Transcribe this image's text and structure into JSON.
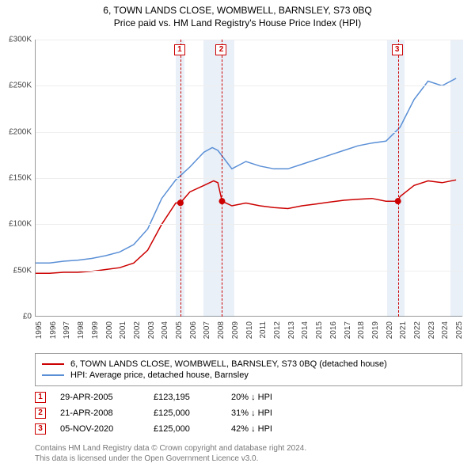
{
  "title": "6, TOWN LANDS CLOSE, WOMBWELL, BARNSLEY, S73 0BQ",
  "subtitle": "Price paid vs. HM Land Registry's House Price Index (HPI)",
  "chart": {
    "type": "line",
    "background_color": "#ffffff",
    "grid_color": "#eeeeee",
    "axis_color": "#999999",
    "label_fontsize": 10,
    "x": {
      "min": 1995,
      "max": 2025.5,
      "ticks": [
        1995,
        1996,
        1997,
        1998,
        1999,
        2000,
        2001,
        2002,
        2003,
        2004,
        2005,
        2006,
        2007,
        2008,
        2009,
        2010,
        2011,
        2012,
        2013,
        2014,
        2015,
        2016,
        2017,
        2018,
        2019,
        2020,
        2021,
        2022,
        2023,
        2024,
        2025
      ]
    },
    "y": {
      "min": 0,
      "max": 300000,
      "ticks": [
        0,
        50000,
        100000,
        150000,
        200000,
        250000,
        300000
      ],
      "prefix": "£",
      "format_k": true
    },
    "recession_bands": [
      {
        "from": 2005.0,
        "to": 2005.6
      },
      {
        "from": 2007.0,
        "to": 2009.2
      },
      {
        "from": 2020.1,
        "to": 2021.3
      },
      {
        "from": 2024.6,
        "to": 2025.5
      }
    ],
    "series": [
      {
        "id": "property",
        "label": "6, TOWN LANDS CLOSE, WOMBWELL, BARNSLEY, S73 0BQ (detached house)",
        "color": "#cc0000",
        "line_width": 1.5,
        "points": [
          [
            1995,
            47000
          ],
          [
            1996,
            47000
          ],
          [
            1997,
            48000
          ],
          [
            1998,
            48000
          ],
          [
            1999,
            49000
          ],
          [
            2000,
            51000
          ],
          [
            2001,
            53000
          ],
          [
            2002,
            58000
          ],
          [
            2003,
            72000
          ],
          [
            2004,
            100000
          ],
          [
            2005,
            123000
          ],
          [
            2005.33,
            123195
          ],
          [
            2006,
            135000
          ],
          [
            2007,
            142000
          ],
          [
            2007.7,
            147000
          ],
          [
            2008,
            145000
          ],
          [
            2008.3,
            125000
          ],
          [
            2009,
            120000
          ],
          [
            2010,
            123000
          ],
          [
            2011,
            120000
          ],
          [
            2012,
            118000
          ],
          [
            2013,
            117000
          ],
          [
            2014,
            120000
          ],
          [
            2015,
            122000
          ],
          [
            2016,
            124000
          ],
          [
            2017,
            126000
          ],
          [
            2018,
            127000
          ],
          [
            2019,
            128000
          ],
          [
            2020,
            125000
          ],
          [
            2020.85,
            125000
          ],
          [
            2021,
            130000
          ],
          [
            2022,
            142000
          ],
          [
            2023,
            147000
          ],
          [
            2024,
            145000
          ],
          [
            2025,
            148000
          ]
        ]
      },
      {
        "id": "hpi",
        "label": "HPI: Average price, detached house, Barnsley",
        "color": "#5a8fd6",
        "line_width": 1.5,
        "points": [
          [
            1995,
            58000
          ],
          [
            1996,
            58000
          ],
          [
            1997,
            60000
          ],
          [
            1998,
            61000
          ],
          [
            1999,
            63000
          ],
          [
            2000,
            66000
          ],
          [
            2001,
            70000
          ],
          [
            2002,
            78000
          ],
          [
            2003,
            95000
          ],
          [
            2004,
            128000
          ],
          [
            2005,
            148000
          ],
          [
            2006,
            162000
          ],
          [
            2007,
            178000
          ],
          [
            2007.6,
            183000
          ],
          [
            2008,
            180000
          ],
          [
            2009,
            160000
          ],
          [
            2010,
            168000
          ],
          [
            2011,
            163000
          ],
          [
            2012,
            160000
          ],
          [
            2013,
            160000
          ],
          [
            2014,
            165000
          ],
          [
            2015,
            170000
          ],
          [
            2016,
            175000
          ],
          [
            2017,
            180000
          ],
          [
            2018,
            185000
          ],
          [
            2019,
            188000
          ],
          [
            2020,
            190000
          ],
          [
            2021,
            205000
          ],
          [
            2022,
            235000
          ],
          [
            2023,
            255000
          ],
          [
            2024,
            250000
          ],
          [
            2025,
            258000
          ]
        ]
      }
    ],
    "markers": [
      {
        "n": 1,
        "x": 2005.33,
        "y": 123195
      },
      {
        "n": 2,
        "x": 2008.3,
        "y": 125000
      },
      {
        "n": 3,
        "x": 2020.85,
        "y": 125000
      }
    ],
    "marker_color": "#cc0000"
  },
  "legend": {
    "items": [
      {
        "series_id": "property"
      },
      {
        "series_id": "hpi"
      }
    ]
  },
  "sales": [
    {
      "n": 1,
      "date": "29-APR-2005",
      "price": "£123,195",
      "diff": "20% ↓ HPI"
    },
    {
      "n": 2,
      "date": "21-APR-2008",
      "price": "£125,000",
      "diff": "31% ↓ HPI"
    },
    {
      "n": 3,
      "date": "05-NOV-2020",
      "price": "£125,000",
      "diff": "42% ↓ HPI"
    }
  ],
  "credits": {
    "line1": "Contains HM Land Registry data © Crown copyright and database right 2024.",
    "line2": "This data is licensed under the Open Government Licence v3.0."
  }
}
